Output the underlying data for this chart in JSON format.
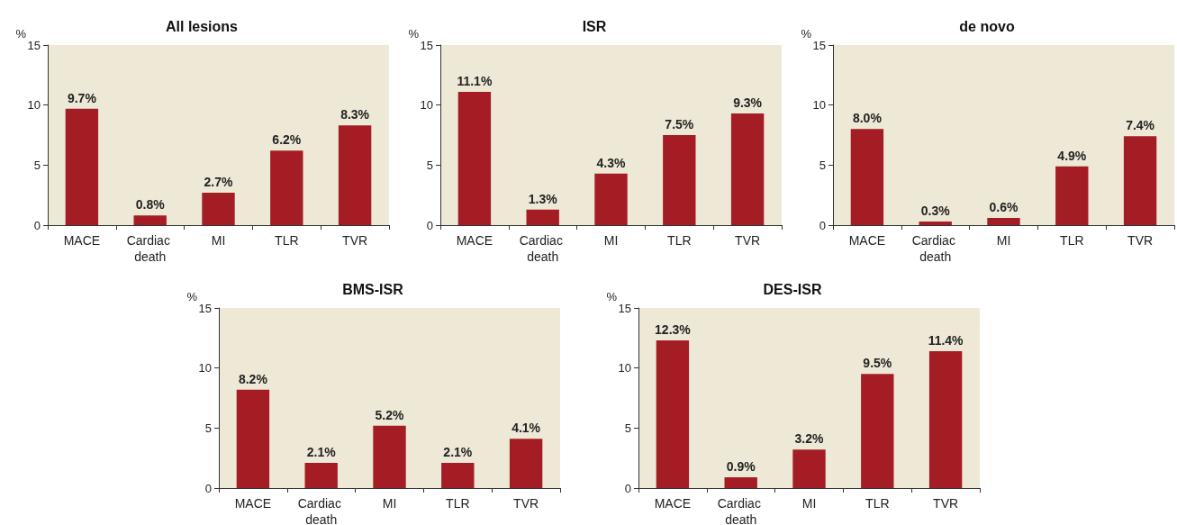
{
  "chart_data": [
    {
      "type": "bar",
      "title": "All lesions",
      "ylabel": "%",
      "categories": [
        "MACE",
        "Cardiac death",
        "MI",
        "TLR",
        "TVR"
      ],
      "values": [
        9.7,
        0.8,
        2.7,
        6.2,
        8.3
      ],
      "value_labels": [
        "9.7%",
        "0.8%",
        "2.7%",
        "6.2%",
        "8.3%"
      ],
      "color": "#a51d24",
      "ylim": [
        0,
        15
      ],
      "yticks": [
        0,
        5,
        10,
        15
      ]
    },
    {
      "type": "bar",
      "title": "ISR",
      "ylabel": "%",
      "categories": [
        "MACE",
        "Cardiac death",
        "MI",
        "TLR",
        "TVR"
      ],
      "values": [
        11.1,
        1.3,
        4.3,
        7.5,
        9.3
      ],
      "value_labels": [
        "11.1%",
        "1.3%",
        "4.3%",
        "7.5%",
        "9.3%"
      ],
      "color": "#a51d24",
      "ylim": [
        0,
        15
      ],
      "yticks": [
        0,
        5,
        10,
        15
      ]
    },
    {
      "type": "bar",
      "title": "de novo",
      "ylabel": "%",
      "categories": [
        "MACE",
        "Cardiac death",
        "MI",
        "TLR",
        "TVR"
      ],
      "values": [
        8.0,
        0.3,
        0.6,
        4.9,
        7.4
      ],
      "value_labels": [
        "8.0%",
        "0.3%",
        "0.6%",
        "4.9%",
        "7.4%"
      ],
      "color": "#a51d24",
      "ylim": [
        0,
        15
      ],
      "yticks": [
        0,
        5,
        10,
        15
      ]
    },
    {
      "type": "bar",
      "title": "BMS-ISR",
      "ylabel": "%",
      "categories": [
        "MACE",
        "Cardiac death",
        "MI",
        "TLR",
        "TVR"
      ],
      "values": [
        8.2,
        2.1,
        5.2,
        2.1,
        4.1
      ],
      "value_labels": [
        "8.2%",
        "2.1%",
        "5.2%",
        "2.1%",
        "4.1%"
      ],
      "color": "#a51d24",
      "ylim": [
        0,
        15
      ],
      "yticks": [
        0,
        5,
        10,
        15
      ]
    },
    {
      "type": "bar",
      "title": "DES-ISR",
      "ylabel": "%",
      "categories": [
        "MACE",
        "Cardiac death",
        "MI",
        "TLR",
        "TVR"
      ],
      "values": [
        12.3,
        0.9,
        3.2,
        9.5,
        11.4
      ],
      "value_labels": [
        "12.3%",
        "0.9%",
        "3.2%",
        "9.5%",
        "11.4%"
      ],
      "color": "#a51d24",
      "ylim": [
        0,
        15
      ],
      "yticks": [
        0,
        5,
        10,
        15
      ]
    }
  ]
}
